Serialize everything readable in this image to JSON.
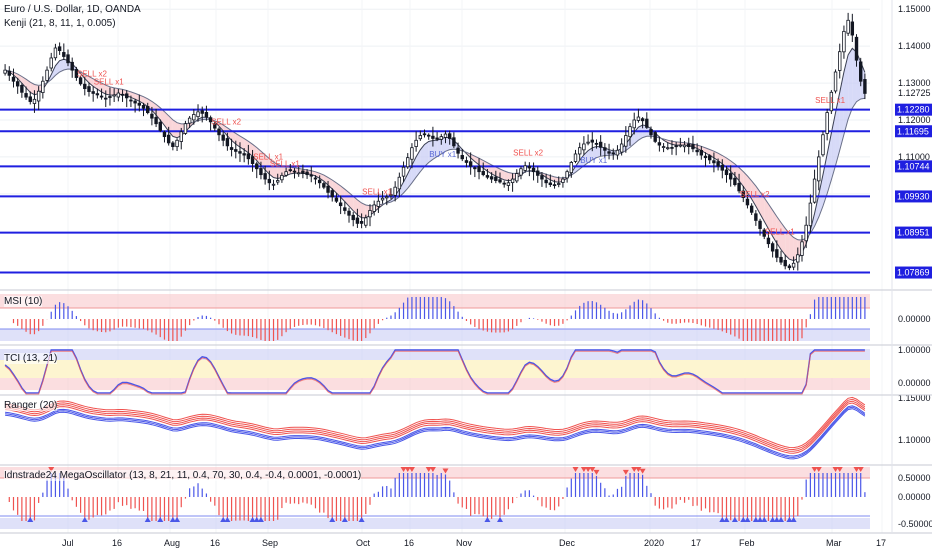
{
  "header": {
    "symbol_title": "Euro / U.S. Dollar, 1D, OANDA",
    "indicator": "Kenji (21, 8, 11, 1, 0.005)"
  },
  "colors": {
    "up": "#131722",
    "down": "#131722",
    "level_line": "#1f1fe0",
    "sell_text": "#ef5350",
    "buy_text": "#5b6bd6",
    "red_hist": "#ef5350",
    "blue_hist": "#4a57e8",
    "pink_zone": "#f8c8cc",
    "blue_zone": "#c9cdf5",
    "yellow_zone": "#fdf5d0"
  },
  "chart_data": [
    {
      "type": "candlestick",
      "title": "Euro / U.S. Dollar, 1D, OANDA",
      "ylim": [
        1.0745,
        1.1525
      ],
      "y_ticks": [
        "1.15000",
        "1.14000",
        "1.13000",
        "1.12000",
        "1.11000",
        "1.10000"
      ],
      "x_ticks": [
        "Jul",
        "16",
        "Aug",
        "16",
        "Sep",
        "Oct",
        "16",
        "Nov",
        "Dec",
        "2020",
        "17",
        "Feb",
        "Mar",
        "17"
      ],
      "last_price": "1.12725",
      "levels": [
        "1.12280",
        "1.11695",
        "1.10744",
        "1.09930",
        "1.08951",
        "1.07869"
      ],
      "signals": [
        {
          "label": "SELL x2",
          "kind": "sell",
          "i": 20
        },
        {
          "label": "SELL x1",
          "kind": "sell",
          "i": 24
        },
        {
          "label": "SELL x2",
          "kind": "sell",
          "i": 52
        },
        {
          "label": "SELL x1",
          "kind": "sell",
          "i": 62
        },
        {
          "label": "SELL x1",
          "kind": "sell",
          "i": 66
        },
        {
          "label": "SELL x1",
          "kind": "sell",
          "i": 88
        },
        {
          "label": "BUY x1",
          "kind": "buy",
          "i": 104
        },
        {
          "label": "SELL x2",
          "kind": "sell",
          "i": 124
        },
        {
          "label": "BUY x1",
          "kind": "buy",
          "i": 140
        },
        {
          "label": "SELL x2",
          "kind": "sell",
          "i": 178
        },
        {
          "label": "SELL x1",
          "kind": "sell",
          "i": 184
        },
        {
          "label": "SELL x1",
          "kind": "sell",
          "i": 196
        }
      ],
      "closes": [
        1.1335,
        1.1321,
        1.1305,
        1.1292,
        1.1275,
        1.1262,
        1.125,
        1.1256,
        1.1278,
        1.1305,
        1.1335,
        1.1368,
        1.1395,
        1.1388,
        1.1372,
        1.1355,
        1.1335,
        1.1315,
        1.1298,
        1.1285,
        1.1277,
        1.1272,
        1.1268,
        1.1262,
        1.1258,
        1.1262,
        1.1268,
        1.1273,
        1.1268,
        1.126,
        1.1252,
        1.1246,
        1.124,
        1.1232,
        1.122,
        1.1205,
        1.119,
        1.1172,
        1.1155,
        1.1138,
        1.1128,
        1.1145,
        1.1168,
        1.119,
        1.1205,
        1.1215,
        1.1222,
        1.1218,
        1.1208,
        1.1195,
        1.1178,
        1.116,
        1.1145,
        1.113,
        1.112,
        1.1115,
        1.111,
        1.1105,
        1.1095,
        1.1082,
        1.1068,
        1.1052,
        1.104,
        1.103,
        1.1026,
        1.1036,
        1.105,
        1.106,
        1.1063,
        1.106,
        1.1057,
        1.1055,
        1.1052,
        1.1048,
        1.104,
        1.103,
        1.1018,
        1.1004,
        1.0992,
        1.098,
        1.0968,
        1.0955,
        1.0942,
        1.093,
        1.092,
        1.092,
        1.0935,
        1.0955,
        1.097,
        1.098,
        1.0988,
        1.0992,
        1.0998,
        1.1018,
        1.1045,
        1.1072,
        1.1098,
        1.1125,
        1.1145,
        1.1158,
        1.1162,
        1.1158,
        1.115,
        1.1148,
        1.1155,
        1.1162,
        1.115,
        1.113,
        1.111,
        1.1095,
        1.1085,
        1.1075,
        1.1068,
        1.106,
        1.1052,
        1.1045,
        1.104,
        1.1036,
        1.1032,
        1.1028,
        1.103,
        1.104,
        1.1055,
        1.1068,
        1.1076,
        1.107,
        1.106,
        1.105,
        1.104,
        1.103,
        1.1025,
        1.1023,
        1.1028,
        1.104,
        1.106,
        1.1085,
        1.1108,
        1.1125,
        1.1135,
        1.114,
        1.114,
        1.1135,
        1.1126,
        1.1118,
        1.111,
        1.111,
        1.1118,
        1.1135,
        1.1158,
        1.1182,
        1.12,
        1.1208,
        1.1198,
        1.118,
        1.116,
        1.1142,
        1.1132,
        1.1128,
        1.1125,
        1.1125,
        1.1128,
        1.1132,
        1.1132,
        1.1128,
        1.1122,
        1.1114,
        1.1105,
        1.1098,
        1.1092,
        1.1084,
        1.1075,
        1.1064,
        1.1052,
        1.104,
        1.1025,
        1.1008,
        1.099,
        1.097,
        1.095,
        1.0928,
        1.0906,
        1.0885,
        1.0865,
        1.0845,
        1.0828,
        1.0815,
        1.0805,
        1.08,
        1.0812,
        1.0835,
        1.087,
        1.0915,
        1.0975,
        1.104,
        1.11,
        1.116,
        1.122,
        1.1275,
        1.133,
        1.1385,
        1.144,
        1.147,
        1.143,
        1.1362,
        1.1305,
        1.1272
      ]
    },
    {
      "type": "bar",
      "title": "MSI (10)",
      "y_ticks": [
        "0.00000"
      ]
    },
    {
      "type": "line",
      "title": "TCI (13, 21)",
      "y_ticks": [
        "1.00000",
        "0.00000"
      ]
    },
    {
      "type": "line",
      "title": "Ranger (20)",
      "y_ticks": [
        "1.15000",
        "1.10000"
      ]
    },
    {
      "type": "bar",
      "title": "Idnstrade24 MegaOscillator (13, 8, 21, 11, 0.4, 70, 30, 0.4, -0.4, 0.0001, -0.0001)",
      "y_ticks": [
        "0.50000",
        "0.00000",
        "-0.50000"
      ]
    }
  ]
}
